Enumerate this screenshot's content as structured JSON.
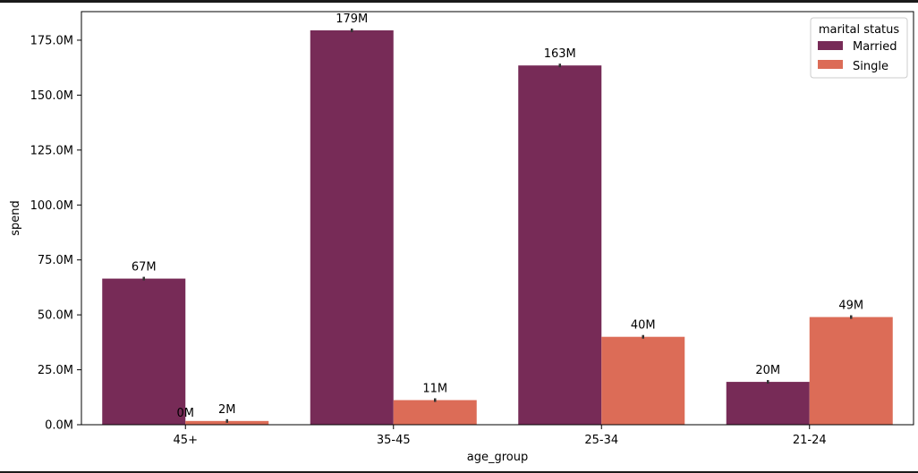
{
  "chart_data": {
    "type": "bar",
    "title": "",
    "xlabel": "age_group",
    "ylabel": "spend",
    "categories": [
      "45+",
      "35-45",
      "25-34",
      "21-24"
    ],
    "series": [
      {
        "name": "Married",
        "color": "#772b57",
        "values": [
          66.5,
          179.5,
          163.5,
          19.5
        ],
        "labels": [
          "67M",
          "179M",
          "163M",
          "20M"
        ]
      },
      {
        "name": "Single",
        "color": "#dc6c57",
        "values": [
          1.7,
          11.2,
          40.0,
          49.0
        ],
        "labels": [
          "2M",
          "11M",
          "40M",
          "49M"
        ]
      }
    ],
    "extra_labels": [
      {
        "category": "45+",
        "text": "0M"
      }
    ],
    "ylim": [
      0,
      188
    ],
    "yticks": [
      0,
      25,
      50,
      75,
      100,
      125,
      150,
      175
    ],
    "ytick_labels": [
      "0.0M",
      "25.0M",
      "50.0M",
      "75.0M",
      "100.0M",
      "125.0M",
      "150.0M",
      "175.0M"
    ],
    "legend": {
      "title": "marital status",
      "placement": "top-right"
    },
    "grid": false
  }
}
